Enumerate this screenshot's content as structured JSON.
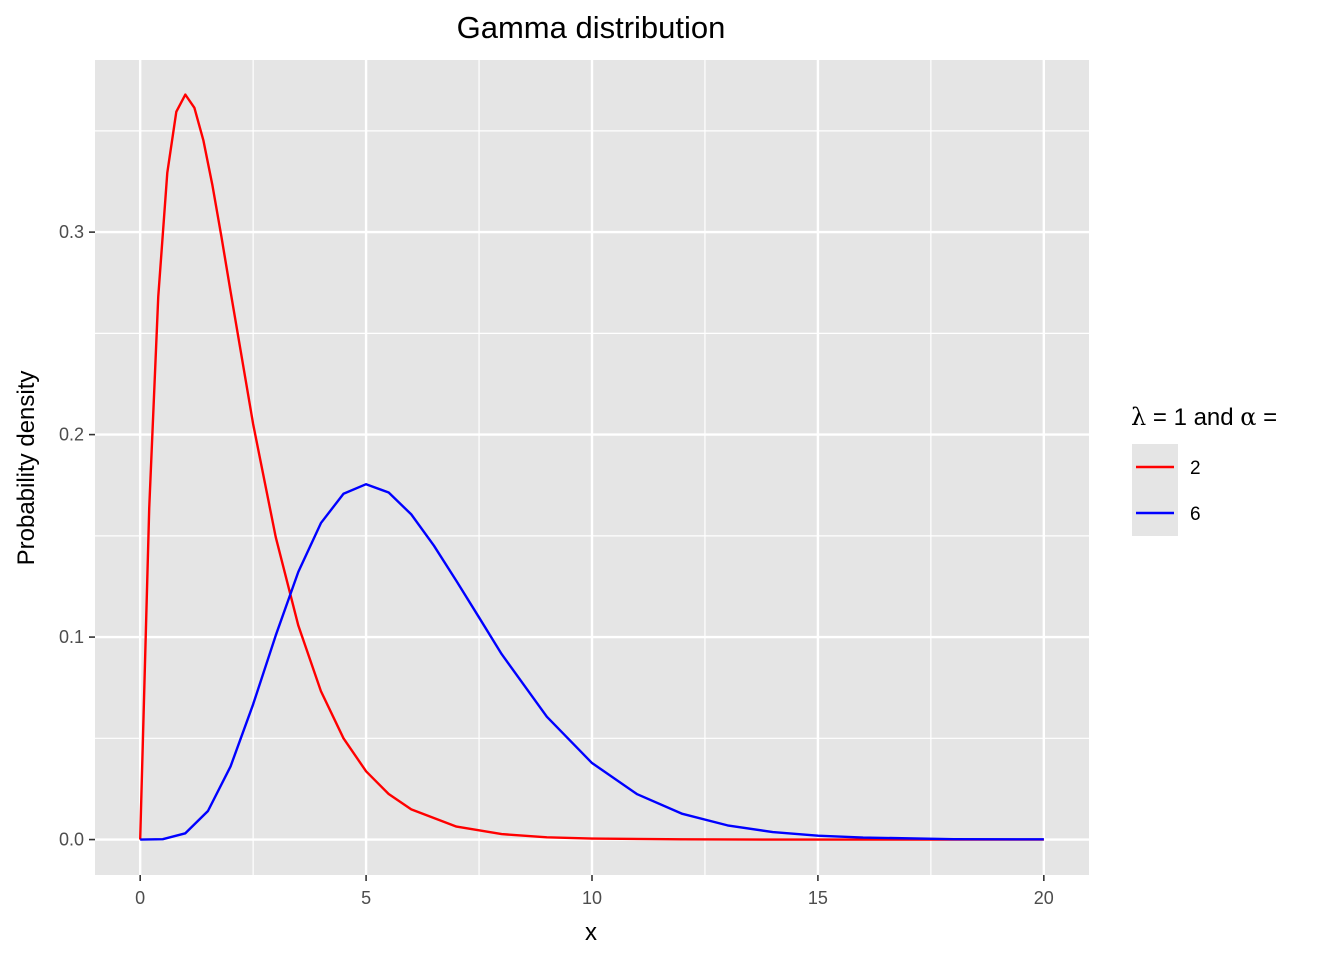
{
  "chart_data": {
    "type": "line",
    "title": "Gamma distribution",
    "xlabel": "x",
    "ylabel": "Probability density",
    "xlim": [
      -1,
      21
    ],
    "ylim": [
      -0.0175,
      0.385
    ],
    "x_ticks": [
      0,
      5,
      10,
      15,
      20
    ],
    "x_tick_labels": [
      "0",
      "5",
      "10",
      "15",
      "20"
    ],
    "y_ticks": [
      0.0,
      0.1,
      0.2,
      0.3
    ],
    "y_tick_labels": [
      "0.0",
      "0.1",
      "0.2",
      "0.3"
    ],
    "x_minor_ticks": [
      2.5,
      7.5,
      12.5,
      17.5
    ],
    "y_minor_ticks": [
      0.05,
      0.15,
      0.25,
      0.35
    ],
    "grid": true,
    "background": "#e5e5e5",
    "legend": {
      "title_parts": [
        "λ",
        " = 1 and ",
        "α",
        " ="
      ],
      "position": "right",
      "entries": [
        "2",
        "6"
      ]
    },
    "series": [
      {
        "name": "2",
        "color": "#ff0000",
        "x": [
          0,
          0.2,
          0.4,
          0.6,
          0.8,
          1.0,
          1.2,
          1.4,
          1.6,
          1.8,
          2.0,
          2.5,
          3.0,
          3.5,
          4.0,
          4.5,
          5.0,
          5.5,
          6.0,
          7.0,
          8.0,
          9.0,
          10,
          12,
          14,
          16,
          18,
          20
        ],
        "y": [
          0,
          0.1637,
          0.2681,
          0.3293,
          0.3595,
          0.3679,
          0.3614,
          0.3452,
          0.323,
          0.2975,
          0.2707,
          0.2052,
          0.1494,
          0.1057,
          0.0733,
          0.05,
          0.0337,
          0.0225,
          0.0149,
          0.0064,
          0.0027,
          0.0011,
          0.0005,
          0.0001,
          0.0,
          0.0,
          0.0,
          0.0
        ]
      },
      {
        "name": "6",
        "color": "#0000ff",
        "x": [
          0,
          0.5,
          1.0,
          1.5,
          2.0,
          2.5,
          3.0,
          3.5,
          4.0,
          4.5,
          5.0,
          5.5,
          6.0,
          6.5,
          7.0,
          7.5,
          8.0,
          9.0,
          10,
          11,
          12,
          13,
          14,
          15,
          16,
          18,
          20
        ],
        "y": [
          0,
          0.0002,
          0.0031,
          0.0141,
          0.0361,
          0.0668,
          0.1008,
          0.1322,
          0.1563,
          0.1708,
          0.1755,
          0.1714,
          0.1606,
          0.1452,
          0.1277,
          0.1097,
          0.0916,
          0.0607,
          0.0378,
          0.0224,
          0.0127,
          0.007,
          0.0037,
          0.0019,
          0.001,
          0.0002,
          0.0001
        ]
      }
    ]
  }
}
